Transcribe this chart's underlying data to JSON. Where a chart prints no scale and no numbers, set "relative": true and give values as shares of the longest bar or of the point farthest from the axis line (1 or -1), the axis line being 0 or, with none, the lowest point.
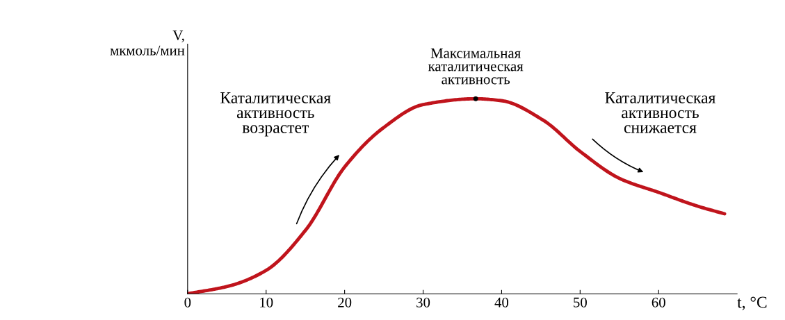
{
  "chart_data": {
    "type": "line",
    "relative": true,
    "xlabel": "t, °C",
    "ylabel": "V,\nмкмоль/мин",
    "x": [
      0,
      5.3,
      10,
      15.1,
      20,
      24.9,
      30,
      36.7,
      40,
      45.3,
      50,
      55.1,
      60,
      64.9,
      68.4
    ],
    "series": [
      {
        "color": "#c0141c",
        "values": [
          0,
          0.04,
          0.12,
          0.33,
          0.65,
          0.85,
          0.97,
          1,
          0.99,
          0.89,
          0.73,
          0.59,
          0.52,
          0.45,
          0.41
        ]
      }
    ],
    "xlim": [
      0,
      70
    ],
    "xticks": [
      0,
      10,
      20,
      30,
      40,
      50,
      60
    ],
    "tick_labels": "x",
    "grid": false,
    "legend": false,
    "annotations": [
      {
        "text": "Максимальная\nкаталитическая\nактивность",
        "x": 36.7,
        "y": 1
      },
      "Каталитическая\nактивность\nвозрастет",
      "Каталитическая\nактивность\nснижается"
    ]
  }
}
